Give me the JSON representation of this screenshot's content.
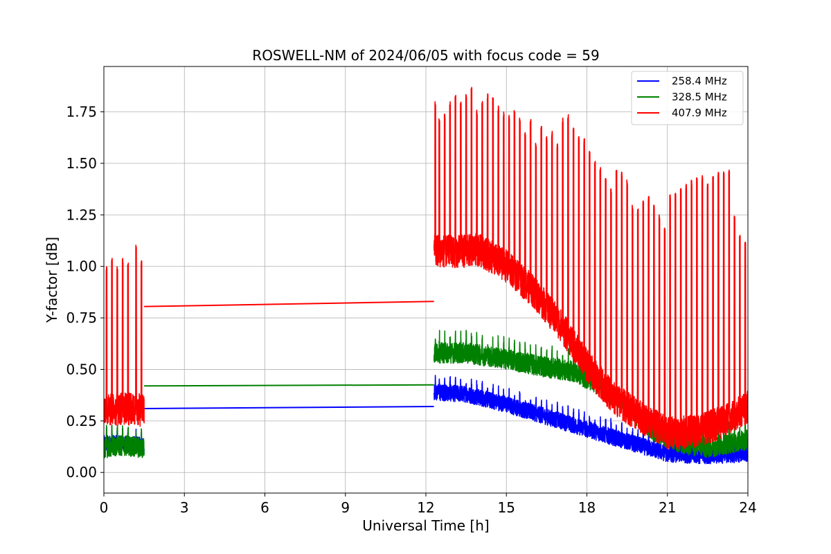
{
  "chart_data": {
    "type": "line",
    "title": "ROSWELL-NM of 2024/06/05 with focus code = 59",
    "xlabel": "Universal Time [h]",
    "ylabel": "Y-factor [dB]",
    "xlim": [
      0,
      24
    ],
    "ylim": [
      -0.1,
      1.97
    ],
    "xticks": [
      0,
      3,
      6,
      9,
      12,
      15,
      18,
      21,
      24
    ],
    "xtick_labels": [
      "0",
      "3",
      "6",
      "9",
      "12",
      "15",
      "18",
      "21",
      "24"
    ],
    "yticks": [
      0.0,
      0.25,
      0.5,
      0.75,
      1.0,
      1.25,
      1.5,
      1.75
    ],
    "ytick_labels": [
      "0.00",
      "0.25",
      "0.50",
      "0.75",
      "1.00",
      "1.25",
      "1.50",
      "1.75"
    ],
    "grid": true,
    "legend_position": "top-right",
    "gap_hours": [
      1.5,
      12.3
    ],
    "series": [
      {
        "name": "258.4 MHz",
        "color": "#0000ff",
        "baseline": [
          [
            0.0,
            0.14
          ],
          [
            0.75,
            0.14
          ],
          [
            1.5,
            0.13
          ],
          [
            12.3,
            0.39
          ],
          [
            13.5,
            0.38
          ],
          [
            15.0,
            0.33
          ],
          [
            16.5,
            0.27
          ],
          [
            18.0,
            0.21
          ],
          [
            19.5,
            0.15
          ],
          [
            21.0,
            0.09
          ],
          [
            22.5,
            0.08
          ],
          [
            24.0,
            0.09
          ]
        ],
        "gap_line": [
          [
            1.5,
            0.31
          ],
          [
            12.3,
            0.32
          ]
        ],
        "noise": 0.04,
        "spike_extra": 0.0
      },
      {
        "name": "328.5 MHz",
        "color": "#008000",
        "baseline": [
          [
            0.0,
            0.12
          ],
          [
            0.75,
            0.13
          ],
          [
            1.5,
            0.12
          ],
          [
            12.3,
            0.58
          ],
          [
            13.5,
            0.58
          ],
          [
            15.0,
            0.55
          ],
          [
            16.5,
            0.51
          ],
          [
            17.5,
            0.49
          ],
          [
            18.5,
            0.42
          ],
          [
            19.5,
            0.32
          ],
          [
            20.5,
            0.2
          ],
          [
            21.5,
            0.14
          ],
          [
            22.5,
            0.12
          ],
          [
            24.0,
            0.16
          ]
        ],
        "gap_line": [
          [
            1.5,
            0.42
          ],
          [
            12.3,
            0.425
          ]
        ],
        "noise": 0.05,
        "spike_extra": 0.0
      },
      {
        "name": "407.9 MHz",
        "color": "#ff0000",
        "baseline": [
          [
            0.0,
            0.3
          ],
          [
            0.75,
            0.31
          ],
          [
            1.5,
            0.3
          ],
          [
            12.3,
            1.08
          ],
          [
            13.0,
            1.07
          ],
          [
            14.0,
            1.08
          ],
          [
            15.0,
            1.0
          ],
          [
            16.0,
            0.88
          ],
          [
            17.0,
            0.72
          ],
          [
            18.0,
            0.52
          ],
          [
            19.0,
            0.36
          ],
          [
            20.0,
            0.27
          ],
          [
            21.0,
            0.19
          ],
          [
            22.0,
            0.2
          ],
          [
            23.0,
            0.24
          ],
          [
            24.0,
            0.32
          ]
        ],
        "gap_line": [
          [
            1.5,
            0.805
          ],
          [
            12.3,
            0.83
          ]
        ],
        "noise": 0.08,
        "spike_extra": 0.0
      }
    ],
    "red_spike_peaks": [
      [
        0.1,
        1.0
      ],
      [
        0.3,
        1.04
      ],
      [
        0.5,
        1.0
      ],
      [
        0.7,
        1.04
      ],
      [
        0.9,
        1.02
      ],
      [
        1.2,
        1.11
      ],
      [
        1.4,
        1.03
      ],
      [
        12.35,
        1.8
      ],
      [
        12.5,
        1.72
      ],
      [
        12.7,
        1.75
      ],
      [
        12.9,
        1.8
      ],
      [
        13.1,
        1.83
      ],
      [
        13.3,
        1.8
      ],
      [
        13.5,
        1.84
      ],
      [
        13.7,
        1.87
      ],
      [
        13.9,
        1.76
      ],
      [
        14.1,
        1.8
      ],
      [
        14.3,
        1.84
      ],
      [
        14.5,
        1.82
      ],
      [
        14.7,
        1.78
      ],
      [
        14.9,
        1.75
      ],
      [
        15.1,
        1.74
      ],
      [
        15.3,
        1.76
      ],
      [
        15.5,
        1.72
      ],
      [
        15.7,
        1.65
      ],
      [
        15.9,
        1.72
      ],
      [
        16.1,
        1.6
      ],
      [
        16.3,
        1.68
      ],
      [
        16.5,
        1.63
      ],
      [
        16.7,
        1.66
      ],
      [
        16.9,
        1.6
      ],
      [
        17.1,
        1.72
      ],
      [
        17.3,
        1.74
      ],
      [
        17.5,
        1.68
      ],
      [
        17.7,
        1.63
      ],
      [
        17.9,
        1.62
      ],
      [
        18.1,
        1.56
      ],
      [
        18.3,
        1.52
      ],
      [
        18.5,
        1.48
      ],
      [
        18.7,
        1.43
      ],
      [
        18.9,
        1.38
      ],
      [
        19.1,
        1.47
      ],
      [
        19.3,
        1.46
      ],
      [
        19.5,
        1.42
      ],
      [
        19.7,
        1.3
      ],
      [
        19.9,
        1.28
      ],
      [
        20.1,
        1.32
      ],
      [
        20.3,
        1.34
      ],
      [
        20.5,
        1.3
      ],
      [
        20.7,
        1.25
      ],
      [
        20.9,
        1.19
      ],
      [
        21.1,
        1.35
      ],
      [
        21.3,
        1.36
      ],
      [
        21.5,
        1.38
      ],
      [
        21.7,
        1.4
      ],
      [
        21.9,
        1.42
      ],
      [
        22.1,
        1.43
      ],
      [
        22.3,
        1.44
      ],
      [
        22.5,
        1.41
      ],
      [
        22.7,
        1.45
      ],
      [
        22.9,
        1.46
      ],
      [
        23.1,
        1.46
      ],
      [
        23.3,
        1.48
      ],
      [
        23.5,
        1.25
      ],
      [
        23.7,
        1.15
      ],
      [
        23.9,
        1.12
      ]
    ]
  }
}
